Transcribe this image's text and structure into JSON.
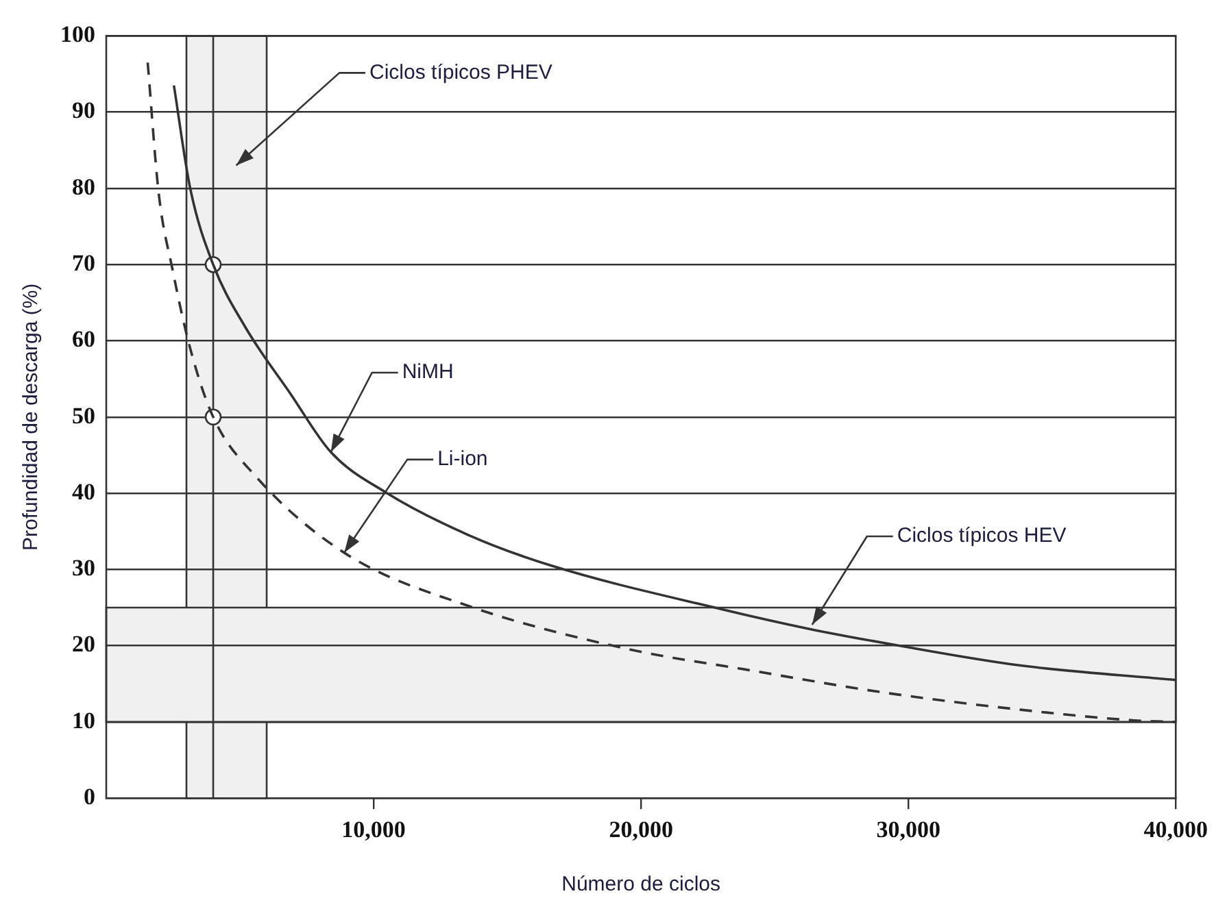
{
  "chart_data": {
    "type": "line",
    "xlabel": "Número de ciclos",
    "ylabel": "Profundidad de descarga (%)",
    "xlim": [
      0,
      40000
    ],
    "xticks": [
      {
        "value": 10000,
        "label": "10,000"
      },
      {
        "value": 20000,
        "label": "20,000"
      },
      {
        "value": 30000,
        "label": "30,000"
      },
      {
        "value": 40000,
        "label": "40,000"
      }
    ],
    "ylim": [
      0,
      100
    ],
    "yticks": [
      0,
      10,
      20,
      30,
      40,
      50,
      60,
      70,
      80,
      90,
      100
    ],
    "grid": "y",
    "series": [
      {
        "color": "#333333",
        "line_style": "solid",
        "marker": "none",
        "x": [
          2530,
          3140,
          4000,
          5200,
          6900,
          8400,
          10460,
          13560,
          16650,
          23000,
          26300,
          29500,
          34200,
          40000
        ],
        "values": [
          93.5,
          80,
          70,
          61.8,
          53,
          45.4,
          40.1,
          34.5,
          30.5,
          24.8,
          22.2,
          20.1,
          17.4,
          15.5
        ]
      },
      {
        "color": "#333333",
        "line_style": "dashed",
        "marker": "none",
        "x": [
          1550,
          1960,
          2470,
          3140,
          4000,
          5570,
          8900,
          13560,
          19590,
          23870,
          29000,
          34200,
          38450,
          40000
        ],
        "values": [
          96.5,
          79.4,
          69.5,
          59,
          50,
          42.3,
          32.2,
          25.2,
          19.5,
          16.9,
          13.9,
          11.6,
          10.2,
          10
        ]
      },
      {
        "type": "scatter",
        "color": "#333333",
        "marker": "circle",
        "x": [
          4000,
          4000
        ],
        "values": [
          70,
          50
        ]
      }
    ],
    "annotations": [
      {
        "text": "NiMH",
        "x": 8400,
        "y": 45.4
      },
      {
        "text": "Li-ion",
        "x": 8900,
        "y": 32.2
      }
    ],
    "bands": [
      {
        "axis": "x",
        "from": 3000,
        "to": 6000,
        "label": "Ciclos típicos PHEV",
        "color": "#f0f0f0"
      },
      {
        "axis": "y",
        "from": 10,
        "to": 25,
        "label": "Ciclos típicos HEV",
        "color": "#f0f0f0"
      }
    ],
    "ref_lines": [
      {
        "axis": "x",
        "value": 4000,
        "color": "#333333"
      }
    ]
  }
}
